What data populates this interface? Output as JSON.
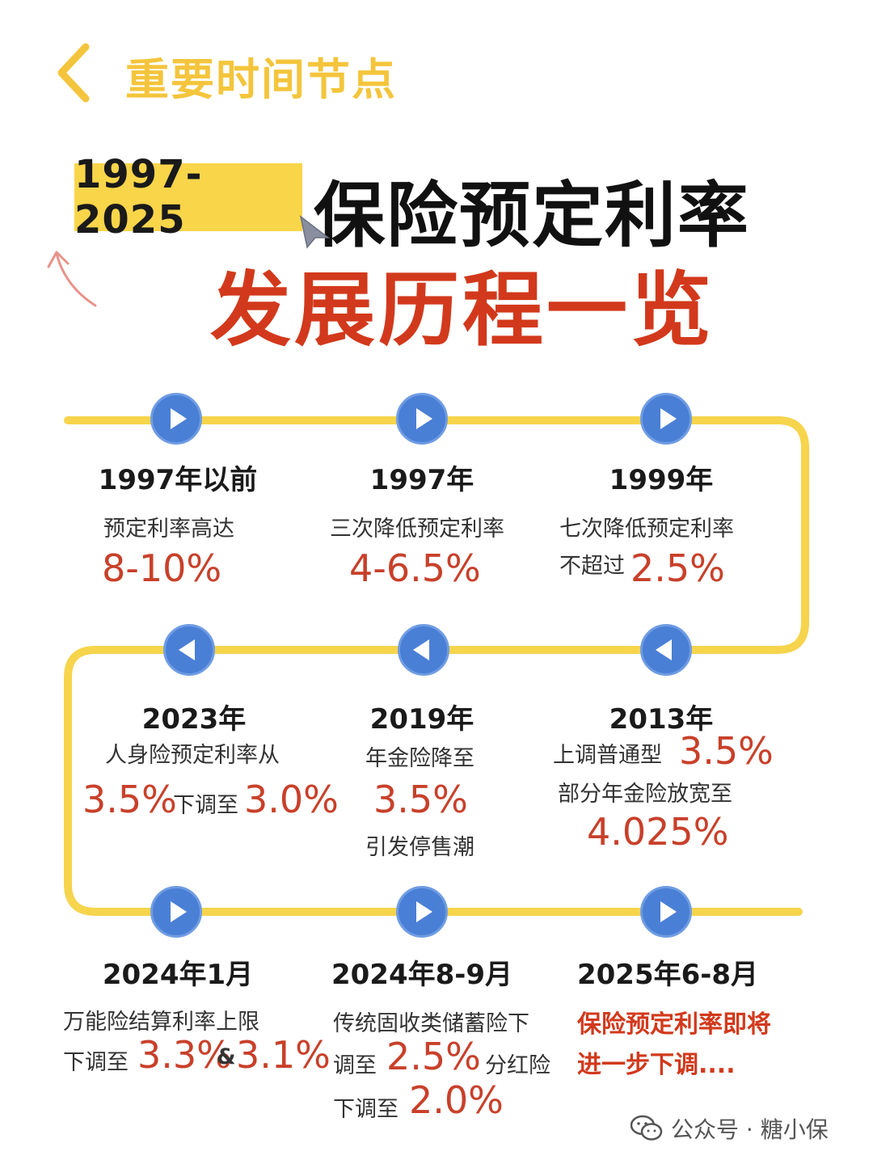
{
  "header": {
    "title": "重要时间节点"
  },
  "title_block": {
    "year_range": "1997-2025",
    "line1": "保险预定利率",
    "line2": "发展历程一览"
  },
  "colors": {
    "accent_yellow": "#f9d54a",
    "timeline_yellow": "#f6d44c",
    "play_blue": "#4a7fd6",
    "highlight_red": "#c8402a"
  },
  "milestones": [
    {
      "year": "1997年以前",
      "line1": "预定利率高达",
      "rate": "8-10%"
    },
    {
      "year": "1997年",
      "line1": "三次降低预定利率",
      "rate": "4-6.5%"
    },
    {
      "year": "1999年",
      "line1": "七次降低预定利率",
      "prefix": "不超过",
      "rate": "2.5%"
    },
    {
      "year": "2023年",
      "line1": "人身险预定利率从",
      "rate_from": "3.5%",
      "mid": "下调至",
      "rate_to": "3.0%"
    },
    {
      "year": "2019年",
      "line1": "年金险降至",
      "rate": "3.5%",
      "line2": "引发停售潮"
    },
    {
      "year": "2013年",
      "line1": "上调普通型",
      "rate1": "3.5%",
      "line2": "部分年金险放宽至",
      "rate2": "4.025%"
    },
    {
      "year": "2024年1月",
      "line1": "万能险结算利率上限",
      "prefix": "下调至",
      "rate1": "3.3%",
      "amp": "&",
      "rate2": "3.1%"
    },
    {
      "year": "2024年8-9月",
      "line1": "传统固收类储蓄险下",
      "prefix": "调至",
      "rate1": "2.5%",
      "mid": "分红险",
      "prefix2": "下调至",
      "rate2": "2.0%"
    },
    {
      "year": "2025年6-8月",
      "line1": "保险预定利率即将",
      "line2": "进一步下调...."
    }
  ],
  "watermark": {
    "text": "公众号 · 糖小保"
  }
}
